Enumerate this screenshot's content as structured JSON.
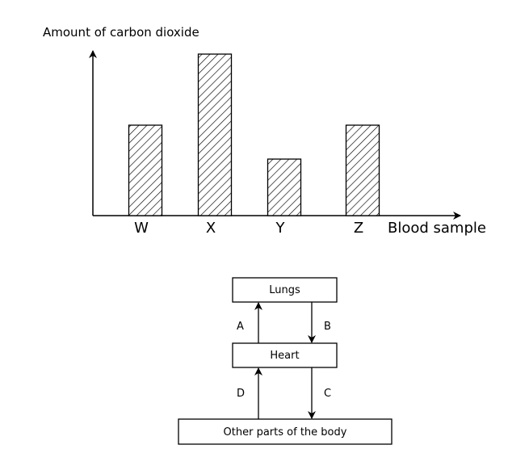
{
  "chart_data": {
    "type": "bar",
    "ylabel": "Amount of carbon dioxide",
    "xlabel": "Blood sample",
    "categories": [
      "W",
      "X",
      "Y",
      "Z"
    ],
    "values": [
      5.6,
      10,
      3.5,
      5.6
    ],
    "ylim": [
      0,
      10.2
    ],
    "grid": false,
    "legend": "none",
    "bar_fill": "hatched",
    "color": "#000000"
  },
  "diagram": {
    "nodes": {
      "lungs": "Lungs",
      "heart": "Heart",
      "body": "Other parts of the body"
    },
    "arrows": {
      "a": "A",
      "b": "B",
      "c": "C",
      "d": "D"
    }
  }
}
